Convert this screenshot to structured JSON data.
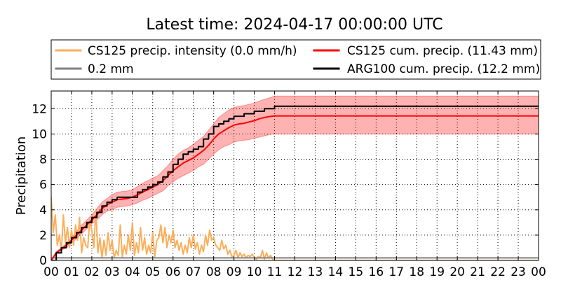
{
  "chart_data": {
    "type": "line",
    "title": "Latest time: 2024-04-17 00:00:00 UTC",
    "xlabel": "",
    "ylabel": "Precipitation",
    "xlim": [
      0,
      24
    ],
    "ylim": [
      0,
      13.4
    ],
    "grid": true,
    "x_tick_labels": [
      "00",
      "01",
      "02",
      "03",
      "04",
      "05",
      "06",
      "07",
      "08",
      "09",
      "10",
      "11",
      "12",
      "13",
      "14",
      "15",
      "16",
      "17",
      "18",
      "19",
      "20",
      "21",
      "22",
      "23",
      "00"
    ],
    "y_ticks": [
      0,
      2,
      4,
      6,
      8,
      10,
      12
    ],
    "legend": {
      "placement": "top",
      "entries": [
        {
          "label": "CS125 precip. intensity (0.0 mm/h)",
          "color": "#fdae5a"
        },
        {
          "label": "CS125 cum. precip. (11.43 mm)",
          "color": "#ff0000"
        },
        {
          "label": "0.2 mm",
          "color": "#808080"
        },
        {
          "label": "ARG100 cum. precip. (12.2 mm)",
          "color": "#000000"
        }
      ]
    },
    "series": [
      {
        "name": "CS125 precip. intensity (0.0 mm/h)",
        "color": "#fdae5a",
        "x": [
          0.0,
          0.1,
          0.2,
          0.3,
          0.4,
          0.5,
          0.6,
          0.7,
          0.8,
          0.9,
          1.0,
          1.1,
          1.2,
          1.3,
          1.4,
          1.5,
          1.6,
          1.7,
          1.8,
          1.9,
          2.0,
          2.1,
          2.2,
          2.3,
          2.4,
          2.5,
          2.6,
          2.7,
          2.8,
          2.9,
          3.0,
          3.1,
          3.2,
          3.3,
          3.4,
          3.5,
          3.6,
          3.7,
          3.8,
          3.9,
          4.0,
          4.1,
          4.2,
          4.3,
          4.4,
          4.5,
          4.6,
          4.7,
          4.8,
          4.9,
          5.0,
          5.1,
          5.2,
          5.3,
          5.4,
          5.5,
          5.6,
          5.7,
          5.8,
          5.9,
          6.0,
          6.1,
          6.2,
          6.3,
          6.4,
          6.5,
          6.6,
          6.7,
          6.8,
          6.9,
          7.0,
          7.1,
          7.2,
          7.3,
          7.4,
          7.5,
          7.6,
          7.7,
          7.8,
          7.9,
          8.0,
          8.1,
          8.2,
          8.3,
          8.4,
          8.5,
          8.6,
          8.7,
          8.8,
          8.9,
          9.0,
          9.1,
          9.2,
          9.3,
          9.4,
          9.5,
          9.6,
          9.7,
          9.8,
          9.9,
          10.0,
          10.1,
          10.2,
          10.3,
          10.4,
          10.5,
          10.6,
          10.7,
          10.8,
          10.9,
          11.0,
          24.0
        ],
        "values": [
          5.0,
          2.2,
          3.6,
          1.2,
          2.0,
          0.8,
          3.6,
          1.4,
          2.6,
          1.0,
          2.4,
          1.2,
          2.8,
          1.6,
          3.4,
          0.6,
          1.8,
          1.2,
          1.0,
          3.2,
          2.4,
          1.0,
          4.0,
          0.6,
          1.8,
          0.2,
          1.6,
          0.4,
          2.2,
          0.8,
          1.6,
          0.2,
          0.8,
          0.4,
          2.8,
          0.3,
          1.2,
          0.5,
          2.0,
          0.8,
          3.0,
          0.4,
          1.4,
          0.6,
          2.6,
          0.8,
          1.8,
          0.5,
          1.2,
          0.6,
          2.2,
          0.3,
          1.6,
          1.8,
          2.8,
          1.4,
          2.6,
          1.0,
          2.0,
          1.4,
          2.4,
          1.0,
          1.6,
          0.8,
          1.4,
          0.5,
          1.2,
          0.6,
          1.8,
          1.0,
          2.0,
          0.9,
          1.4,
          0.5,
          1.2,
          0.7,
          2.0,
          1.2,
          2.4,
          1.6,
          1.8,
          1.2,
          1.0,
          0.8,
          1.6,
          0.9,
          1.2,
          0.5,
          0.8,
          0.3,
          0.4,
          0.8,
          0.2,
          0.6,
          0.3,
          0.5,
          0.2,
          0.4,
          0.3,
          0.5,
          0.2,
          0.1,
          0.3,
          0.2,
          0.8,
          0.1,
          0.6,
          0.2,
          0.4,
          0.1,
          0.0,
          0.0
        ]
      },
      {
        "name": "0.2 mm",
        "color": "#808080",
        "x": [
          0,
          24
        ],
        "values": [
          0.2,
          0.2
        ]
      },
      {
        "name": "CS125 cum. precip. (11.43 mm)",
        "color": "#ff0000",
        "x": [
          0,
          0.25,
          0.5,
          0.75,
          1.0,
          1.25,
          1.5,
          1.75,
          2.0,
          2.25,
          2.5,
          2.75,
          3.0,
          3.25,
          3.5,
          3.75,
          4.0,
          4.25,
          4.5,
          4.75,
          5.0,
          5.25,
          5.5,
          5.75,
          6.0,
          6.25,
          6.5,
          6.75,
          7.0,
          7.25,
          7.5,
          7.75,
          8.0,
          8.25,
          8.5,
          8.75,
          9.0,
          9.25,
          9.5,
          9.75,
          10.0,
          10.25,
          10.5,
          10.75,
          11.0,
          24.0
        ],
        "values": [
          0.0,
          0.6,
          0.9,
          1.2,
          1.6,
          2.0,
          2.4,
          2.8,
          3.2,
          3.6,
          4.1,
          4.4,
          4.6,
          4.8,
          4.85,
          4.9,
          5.0,
          5.2,
          5.4,
          5.6,
          5.8,
          6.0,
          6.3,
          6.7,
          7.1,
          7.4,
          7.7,
          7.9,
          8.1,
          8.4,
          8.7,
          9.1,
          9.6,
          10.0,
          10.25,
          10.5,
          10.7,
          10.8,
          10.85,
          10.95,
          11.05,
          11.2,
          11.3,
          11.38,
          11.43,
          11.43
        ],
        "band_lower": [
          0.0,
          0.5,
          0.8,
          1.0,
          1.4,
          1.7,
          2.1,
          2.5,
          2.9,
          3.2,
          3.6,
          3.9,
          4.0,
          4.2,
          4.25,
          4.3,
          4.4,
          4.55,
          4.75,
          4.9,
          5.1,
          5.3,
          5.5,
          5.9,
          6.2,
          6.5,
          6.7,
          6.9,
          7.1,
          7.4,
          7.6,
          8.0,
          8.4,
          8.75,
          9.0,
          9.15,
          9.35,
          9.45,
          9.5,
          9.55,
          9.65,
          9.75,
          9.85,
          9.95,
          10.0,
          10.0
        ],
        "band_upper": [
          0.0,
          0.7,
          1.0,
          1.35,
          1.8,
          2.3,
          2.8,
          3.2,
          3.6,
          4.1,
          4.6,
          4.9,
          5.2,
          5.4,
          5.45,
          5.5,
          5.6,
          5.85,
          6.1,
          6.3,
          6.5,
          6.7,
          7.1,
          7.5,
          8.0,
          8.4,
          8.7,
          8.9,
          9.2,
          9.5,
          9.8,
          10.3,
          10.8,
          11.3,
          11.6,
          11.9,
          12.1,
          12.2,
          12.25,
          12.35,
          12.45,
          12.6,
          12.75,
          12.85,
          13.0,
          13.0
        ]
      },
      {
        "name": "ARG100 cum. precip. (12.2 mm)",
        "color": "#000000",
        "x": [
          0,
          0.25,
          0.5,
          0.75,
          1.0,
          1.25,
          1.5,
          1.75,
          2.0,
          2.25,
          2.5,
          2.75,
          3.0,
          3.25,
          3.5,
          3.75,
          4.0,
          4.25,
          4.5,
          4.75,
          5.0,
          5.25,
          5.5,
          5.75,
          6.0,
          6.25,
          6.5,
          6.75,
          7.0,
          7.25,
          7.5,
          7.75,
          8.0,
          8.25,
          8.5,
          8.75,
          9.0,
          9.25,
          9.5,
          9.75,
          10.0,
          10.25,
          10.5,
          10.75,
          11.0,
          24.0
        ],
        "values": [
          0.0,
          0.6,
          1.0,
          1.4,
          1.8,
          2.2,
          2.6,
          3.0,
          3.4,
          3.8,
          4.3,
          4.6,
          4.8,
          5.0,
          5.0,
          5.0,
          5.0,
          5.4,
          5.6,
          5.8,
          6.0,
          6.2,
          6.6,
          7.0,
          7.6,
          8.0,
          8.4,
          8.6,
          8.8,
          9.0,
          9.6,
          10.0,
          10.6,
          10.8,
          11.0,
          11.2,
          11.4,
          11.4,
          11.6,
          11.6,
          11.8,
          11.8,
          12.0,
          12.0,
          12.2,
          12.2
        ]
      }
    ]
  }
}
